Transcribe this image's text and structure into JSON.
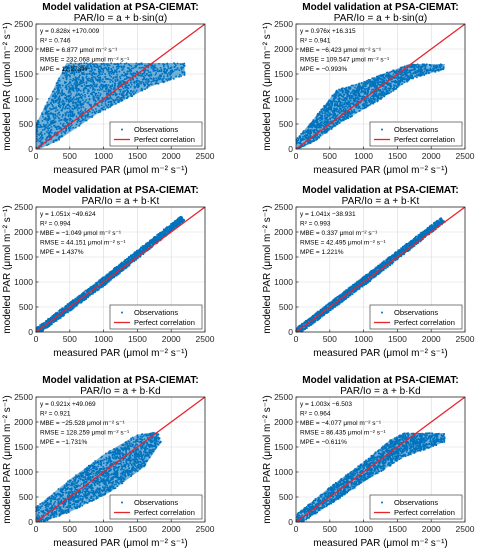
{
  "figure": {
    "colors": {
      "observations": "#0072BD",
      "perfect": "#e8242b",
      "axis": "#262626",
      "grid": "#d9d9d9"
    }
  },
  "chart_data": [
    {
      "type": "scatter",
      "title": "Model validation at PSA-CIEMAT:",
      "subtitle": "PAR/Io = a + b·sin(α)",
      "xlabel": "measured PAR (μmol m⁻² s⁻¹)",
      "ylabel": "modeled PAR (μmol m⁻² s⁻¹)",
      "xlim": [
        0,
        2500
      ],
      "ylim": [
        0,
        2500
      ],
      "xticks": [
        "0",
        "500",
        "1000",
        "1500",
        "2000",
        "2500"
      ],
      "yticks": [
        "0",
        "500",
        "1000",
        "1500",
        "2000",
        "2500"
      ],
      "grid": true,
      "legend_position": "bottom-right",
      "legend": [
        "Observations",
        "Perfect correlation"
      ],
      "stats": [
        "y = 0.828x +170.009",
        "R² = 0.746",
        "MBE = 6.877 μmol m⁻² s⁻¹",
        "RMSE = 232.068 μmol m⁻² s⁻¹",
        "MPE = 12.273%"
      ],
      "fit": {
        "slope": 0.828,
        "intercept": 170.009
      },
      "cloud": [
        [
          0,
          0
        ],
        [
          0,
          500
        ],
        [
          450,
          1720
        ],
        [
          2200,
          1720
        ],
        [
          2200,
          1480
        ],
        [
          1700,
          1250
        ],
        [
          900,
          700
        ],
        [
          300,
          150
        ],
        [
          50,
          0
        ]
      ]
    },
    {
      "type": "scatter",
      "title": "Model validation at PSA-CIEMAT:",
      "subtitle": "PAR/Io = a + b·sin(α)",
      "xlabel": "measured PAR (μmol m⁻² s⁻¹)",
      "ylabel": "modeled PAR (μmol m⁻² s⁻¹)",
      "xlim": [
        0,
        2500
      ],
      "ylim": [
        0,
        2500
      ],
      "xticks": [
        "0",
        "500",
        "1000",
        "1500",
        "2000",
        "2500"
      ],
      "yticks": [
        "0",
        "500",
        "1000",
        "1500",
        "2000",
        "2500"
      ],
      "grid": true,
      "legend_position": "bottom-right",
      "legend": [
        "Observations",
        "Perfect correlation"
      ],
      "stats": [
        "y = 0.976x +16.315",
        "R² = 0.941",
        "MBE = −6.423 μmol m⁻² s⁻¹",
        "RMSE = 109.547 μmol m⁻² s⁻¹",
        "MPE = −0.993%"
      ],
      "fit": {
        "slope": 0.976,
        "intercept": 16.315
      },
      "cloud": [
        [
          0,
          0
        ],
        [
          0,
          200
        ],
        [
          200,
          500
        ],
        [
          600,
          1180
        ],
        [
          1000,
          1350
        ],
        [
          1400,
          1560
        ],
        [
          1700,
          1700
        ],
        [
          2200,
          1700
        ],
        [
          2200,
          1600
        ],
        [
          1700,
          1400
        ],
        [
          1200,
          950
        ],
        [
          700,
          560
        ],
        [
          300,
          180
        ],
        [
          50,
          0
        ]
      ]
    },
    {
      "type": "scatter",
      "title": "Model validation at PSA-CIEMAT:",
      "subtitle": "PAR/Io = a + b·Kt",
      "xlabel": "measured PAR (μmol m⁻² s⁻¹)",
      "ylabel": "modeled PAR (μmol m⁻² s⁻¹)",
      "xlim": [
        0,
        2500
      ],
      "ylim": [
        0,
        2500
      ],
      "xticks": [
        "0",
        "500",
        "1000",
        "1500",
        "2000",
        "2500"
      ],
      "yticks": [
        "0",
        "500",
        "1000",
        "1500",
        "2000",
        "2500"
      ],
      "grid": true,
      "legend_position": "bottom-right",
      "legend": [
        "Observations",
        "Perfect correlation"
      ],
      "stats": [
        "y = 1.051x −49.624",
        "R² = 0.994",
        "MBE = −1.049 μmol m⁻² s⁻¹",
        "RMSE = 44.151 μmol m⁻² s⁻¹",
        "MPE = 1.437%"
      ],
      "fit": {
        "slope": 1.051,
        "intercept": -49.624
      },
      "cloud": [
        [
          0,
          0
        ],
        [
          0,
          80
        ],
        [
          1000,
          1110
        ],
        [
          2150,
          2330
        ],
        [
          2200,
          2230
        ],
        [
          1050,
          970
        ],
        [
          80,
          0
        ]
      ]
    },
    {
      "type": "scatter",
      "title": "Model validation at PSA-CIEMAT:",
      "subtitle": "PAR/Io = a + b·Kt",
      "xlabel": "measured PAR (μmol m⁻² s⁻¹)",
      "ylabel": "modeled PAR (μmol m⁻² s⁻¹)",
      "xlim": [
        0,
        2500
      ],
      "ylim": [
        0,
        2500
      ],
      "xticks": [
        "0",
        "500",
        "1000",
        "1500",
        "2000",
        "2500"
      ],
      "yticks": [
        "0",
        "500",
        "1000",
        "1500",
        "2000",
        "2500"
      ],
      "grid": true,
      "legend_position": "bottom-right",
      "legend": [
        "Observations",
        "Perfect correlation"
      ],
      "stats": [
        "y = 1.041x −38.931",
        "R² = 0.993",
        "MBE = 0.337 μmol m⁻² s⁻¹",
        "RMSE = 42.495 μmol m⁻² s⁻¹",
        "MPE = 1.221%"
      ],
      "fit": {
        "slope": 1.041,
        "intercept": -38.931
      },
      "cloud": [
        [
          0,
          0
        ],
        [
          0,
          80
        ],
        [
          1000,
          1110
        ],
        [
          2150,
          2300
        ],
        [
          2200,
          2200
        ],
        [
          1050,
          970
        ],
        [
          80,
          0
        ]
      ]
    },
    {
      "type": "scatter",
      "title": "Model validation at PSA-CIEMAT:",
      "subtitle": "PAR/Io = a + b·Kd",
      "xlabel": "measured PAR (μmol m⁻² s⁻¹)",
      "ylabel": "modeled PAR (μmol m⁻² s⁻¹)",
      "xlim": [
        0,
        2500
      ],
      "ylim": [
        0,
        2500
      ],
      "xticks": [
        "0",
        "500",
        "1000",
        "1500",
        "2000",
        "2500"
      ],
      "yticks": [
        "0",
        "500",
        "1000",
        "1500",
        "2000",
        "2500"
      ],
      "grid": true,
      "legend_position": "bottom-right",
      "legend": [
        "Observations",
        "Perfect correlation"
      ],
      "stats": [
        "y = 0.921x +49.069",
        "R² = 0.921",
        "MBE = −25.528 μmol m⁻² s⁻¹",
        "RMSE = 128.259 μmol m⁻² s⁻¹",
        "MPE = −1.731%"
      ],
      "fit": {
        "slope": 0.921,
        "intercept": 49.069
      },
      "cloud": [
        [
          0,
          0
        ],
        [
          0,
          300
        ],
        [
          500,
          850
        ],
        [
          1000,
          1350
        ],
        [
          1500,
          1750
        ],
        [
          1800,
          1800
        ],
        [
          1850,
          1600
        ],
        [
          1600,
          1100
        ],
        [
          1100,
          600
        ],
        [
          500,
          200
        ],
        [
          100,
          0
        ]
      ]
    },
    {
      "type": "scatter",
      "title": "Model validation at PSA-CIEMAT:",
      "subtitle": "PAR/Io = a + b·Kd",
      "xlabel": "measured PAR (μmol m⁻² s⁻¹)",
      "ylabel": "modeled PAR (μmol m⁻² s⁻¹)",
      "xlim": [
        0,
        2500
      ],
      "ylim": [
        0,
        2500
      ],
      "xticks": [
        "0",
        "500",
        "1000",
        "1500",
        "2000",
        "2500"
      ],
      "yticks": [
        "0",
        "500",
        "1000",
        "1500",
        "2000",
        "2500"
      ],
      "grid": true,
      "legend_position": "bottom-right",
      "legend": [
        "Observations",
        "Perfect correlation"
      ],
      "stats": [
        "y = 1.003x −6.503",
        "R² = 0.964",
        "MBE = −4.077 μmol m⁻² s⁻¹",
        "RMSE = 86.435 μmol m⁻² s⁻¹",
        "MPE = −0.611%"
      ],
      "fit": {
        "slope": 1.003,
        "intercept": -6.503
      },
      "cloud": [
        [
          0,
          0
        ],
        [
          0,
          150
        ],
        [
          500,
          700
        ],
        [
          1000,
          1200
        ],
        [
          1400,
          1650
        ],
        [
          1600,
          1780
        ],
        [
          2200,
          1780
        ],
        [
          2200,
          1600
        ],
        [
          1600,
          1300
        ],
        [
          1000,
          800
        ],
        [
          500,
          350
        ],
        [
          100,
          0
        ]
      ]
    }
  ]
}
